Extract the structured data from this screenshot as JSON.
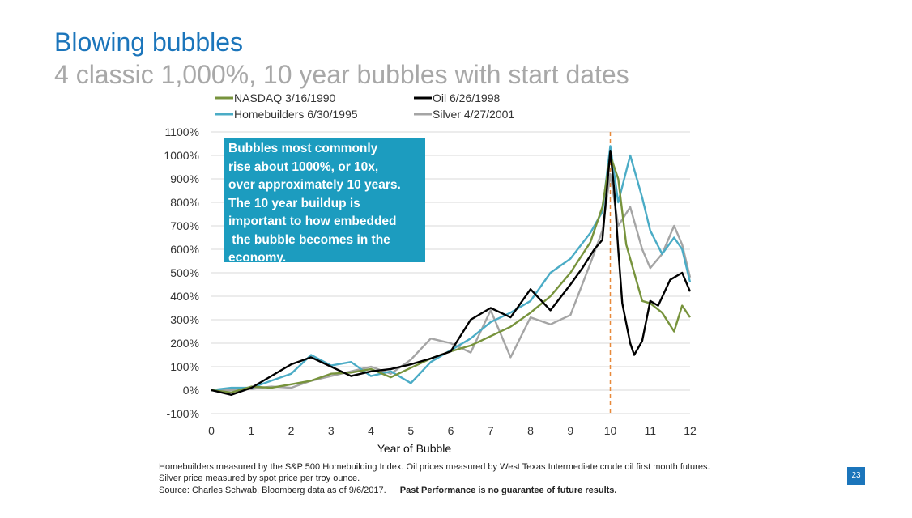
{
  "slide": {
    "title": "Blowing bubbles",
    "subtitle": "4 classic 1,000%, 10 year bubbles with start dates",
    "callout": "Bubbles most commonly\nrise about 1000%, or 10x,\nover approximately 10 years.\nThe 10 year buildup is\nimportant to how embedded\n the bubble becomes in the\neconomy.",
    "footnote_line1": "Homebuilders measured by the S&P 500 Homebuilding Index. Oil prices measured by West Texas Intermediate crude oil first month futures.",
    "footnote_line2": "Silver price measured by spot price per troy ounce.",
    "footnote_source": "Source: Charles Schwab, Bloomberg data as of 9/6/2017.",
    "footnote_warning": "Past Performance is no guarantee of future results.",
    "page_number": "23"
  },
  "chart_data": {
    "type": "line",
    "xlabel": "Year of Bubble",
    "ylabel": "",
    "xlim": [
      0,
      12
    ],
    "ylim": [
      -100,
      1100
    ],
    "x_ticks": [
      "0",
      "1",
      "2",
      "3",
      "4",
      "5",
      "6",
      "7",
      "8",
      "9",
      "10",
      "11",
      "12"
    ],
    "y_ticks": [
      "-100%",
      "0%",
      "100%",
      "200%",
      "300%",
      "400%",
      "500%",
      "600%",
      "700%",
      "800%",
      "900%",
      "1000%",
      "1100%"
    ],
    "grid": "horizontal",
    "legend_position": "top",
    "reference_line": {
      "x": 10,
      "style": "dashed",
      "color": "#e8893a"
    },
    "series": [
      {
        "name": "NASDAQ 3/16/1990",
        "color": "#77933c",
        "x": [
          0,
          0.5,
          1,
          1.5,
          2,
          2.5,
          3,
          3.5,
          4,
          4.5,
          5,
          5.5,
          6,
          6.5,
          7,
          7.5,
          8,
          8.5,
          9,
          9.5,
          9.8,
          10,
          10.2,
          10.4,
          10.6,
          10.8,
          11,
          11.3,
          11.6,
          11.8,
          12
        ],
        "y": [
          0,
          -10,
          15,
          10,
          25,
          40,
          70,
          75,
          90,
          55,
          95,
          135,
          165,
          190,
          230,
          270,
          330,
          400,
          500,
          630,
          780,
          1000,
          900,
          620,
          500,
          380,
          370,
          330,
          250,
          360,
          310
        ]
      },
      {
        "name": "Oil 6/26/1998",
        "color": "#000000",
        "x": [
          0,
          0.5,
          1,
          1.5,
          2,
          2.5,
          3,
          3.5,
          4,
          4.5,
          5,
          5.5,
          6,
          6.5,
          7,
          7.5,
          8,
          8.5,
          9,
          9.3,
          9.6,
          9.8,
          10,
          10.1,
          10.2,
          10.3,
          10.5,
          10.6,
          10.8,
          11,
          11.2,
          11.5,
          11.8,
          12
        ],
        "y": [
          0,
          -20,
          10,
          60,
          110,
          140,
          100,
          60,
          80,
          90,
          110,
          135,
          165,
          300,
          350,
          310,
          430,
          340,
          450,
          520,
          600,
          640,
          1020,
          850,
          600,
          370,
          200,
          150,
          210,
          380,
          360,
          470,
          500,
          420
        ]
      },
      {
        "name": "Homebuilders 6/30/1995",
        "color": "#4bacc6",
        "x": [
          0,
          0.5,
          1,
          1.5,
          2,
          2.5,
          3,
          3.5,
          4,
          4.5,
          5,
          5.5,
          6,
          6.5,
          7,
          7.5,
          8,
          8.5,
          9,
          9.5,
          9.8,
          10,
          10.2,
          10.5,
          10.8,
          11,
          11.3,
          11.6,
          11.8,
          12
        ],
        "y": [
          0,
          10,
          10,
          40,
          70,
          150,
          105,
          120,
          60,
          80,
          30,
          120,
          170,
          220,
          290,
          330,
          380,
          500,
          560,
          670,
          760,
          1040,
          800,
          1000,
          820,
          680,
          580,
          650,
          600,
          460
        ]
      },
      {
        "name": "Silver 4/27/2001",
        "color": "#a5a5a5",
        "x": [
          0,
          0.5,
          1,
          1.5,
          2,
          2.5,
          3,
          3.5,
          4,
          4.5,
          5,
          5.5,
          6,
          6.5,
          7,
          7.5,
          8,
          8.5,
          9,
          9.5,
          9.8,
          10,
          10.2,
          10.5,
          10.8,
          11,
          11.3,
          11.6,
          11.8,
          12
        ],
        "y": [
          0,
          0,
          5,
          15,
          10,
          40,
          60,
          80,
          100,
          70,
          130,
          220,
          200,
          160,
          340,
          140,
          310,
          280,
          320,
          540,
          680,
          920,
          700,
          780,
          600,
          520,
          580,
          700,
          620,
          480
        ]
      }
    ]
  }
}
